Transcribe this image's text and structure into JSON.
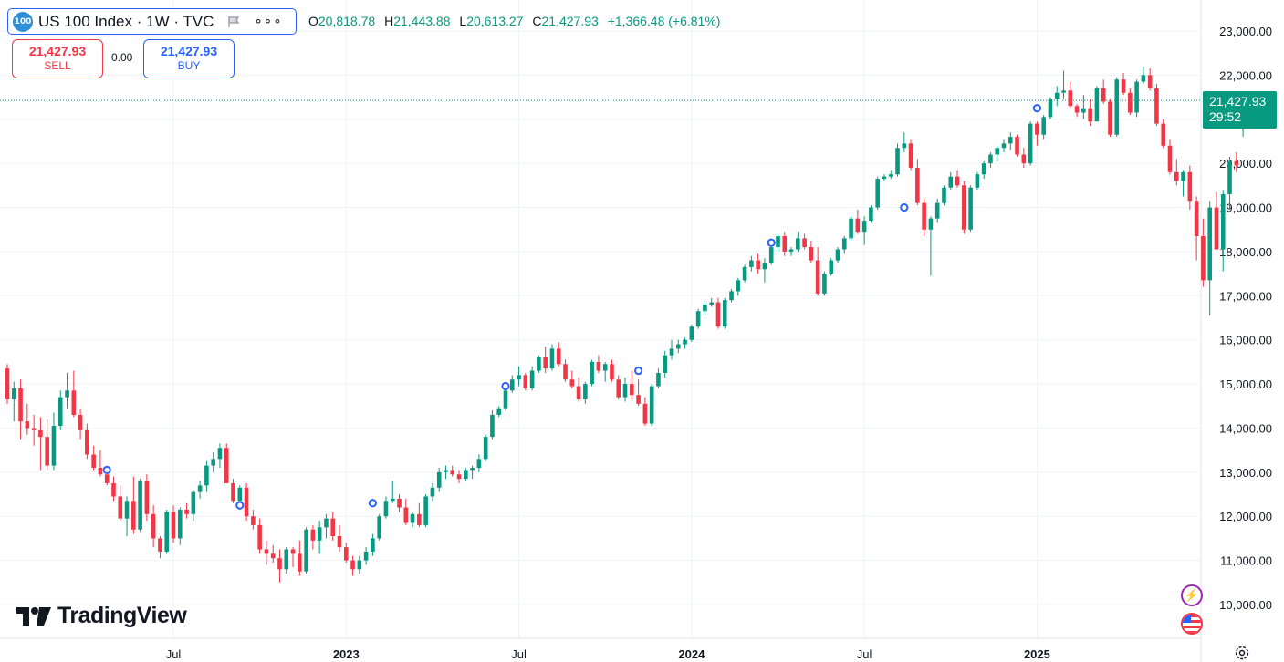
{
  "symbol": {
    "logo_text": "100",
    "title": "US 100 Index · 1W · TVC"
  },
  "ohlc": {
    "o_label": "O",
    "o_value": "20,818.78",
    "h_label": "H",
    "h_value": "21,443.88",
    "l_label": "L",
    "l_value": "20,613.27",
    "c_label": "C",
    "c_value": "21,427.93",
    "change": "+1,366.48 (+6.81%)"
  },
  "trade": {
    "sell_price": "21,427.93",
    "sell_label": "SELL",
    "spread": "0.00",
    "buy_price": "21,427.93",
    "buy_label": "BUY"
  },
  "last_price": {
    "value": "21,427.93",
    "countdown": "29:52"
  },
  "brand": {
    "name": "TradingView"
  },
  "colors": {
    "up": "#089981",
    "down": "#f23645",
    "accent": "#2962ff",
    "grid": "#f0f3fa"
  },
  "icons": [
    "flag-icon",
    "more-icon",
    "bolt-icon",
    "us-flag-icon",
    "gear-icon"
  ],
  "chart_data": {
    "type": "candlestick",
    "title": "US 100 Index · 1W · TVC",
    "timeframe": "1W",
    "ylim": [
      9500,
      23500
    ],
    "y_ticks": [
      10000,
      11000,
      12000,
      13000,
      14000,
      15000,
      16000,
      17000,
      18000,
      19000,
      20000,
      21000,
      22000,
      23000
    ],
    "y_tick_labels": [
      "10,000.00",
      "11,000.00",
      "12,000.00",
      "13,000.00",
      "14,000.00",
      "15,000.00",
      "16,000.00",
      "17,000.00",
      "18,000.00",
      "19,000.00",
      "20,000.00",
      "21,000.00",
      "22,000.00",
      "23,000.00"
    ],
    "x_ticks": [
      {
        "label": "Jul",
        "week": 25
      },
      {
        "label": "2023",
        "week": 51
      },
      {
        "label": "Jul",
        "week": 77
      },
      {
        "label": "2024",
        "week": 103
      },
      {
        "label": "Jul",
        "week": 129
      },
      {
        "label": "2025",
        "week": 155
      }
    ],
    "x_range": [
      -0.5,
      175
    ],
    "last_price_line": 21427.93,
    "event_markers": [
      {
        "week": 15,
        "price": 13050
      },
      {
        "week": 35,
        "price": 12250
      },
      {
        "week": 55,
        "price": 12300
      },
      {
        "week": 75,
        "price": 14950
      },
      {
        "week": 95,
        "price": 15300
      },
      {
        "week": 115,
        "price": 18200
      },
      {
        "week": 135,
        "price": 19000
      },
      {
        "week": 155,
        "price": 21250
      }
    ],
    "candles": [
      [
        15350,
        15450,
        14550,
        14650
      ],
      [
        14650,
        15050,
        14150,
        14900
      ],
      [
        14900,
        15100,
        13750,
        14150
      ],
      [
        14150,
        14550,
        13850,
        14000
      ],
      [
        14000,
        14300,
        13600,
        13950
      ],
      [
        13950,
        14250,
        13050,
        13800
      ],
      [
        13800,
        14200,
        13050,
        13150
      ],
      [
        13150,
        14350,
        13050,
        14050
      ],
      [
        14050,
        14850,
        13950,
        14700
      ],
      [
        14700,
        15250,
        14450,
        14850
      ],
      [
        14850,
        15300,
        14250,
        14300
      ],
      [
        14300,
        14450,
        13750,
        13950
      ],
      [
        13950,
        14100,
        13300,
        13400
      ],
      [
        13400,
        13600,
        13050,
        13100
      ],
      [
        13100,
        13500,
        12900,
        12950
      ],
      [
        12950,
        13150,
        12700,
        12750
      ],
      [
        12750,
        12900,
        12350,
        12450
      ],
      [
        12450,
        12700,
        11900,
        11950
      ],
      [
        11950,
        12450,
        11550,
        12350
      ],
      [
        12350,
        12900,
        11600,
        11700
      ],
      [
        11700,
        12850,
        11650,
        12800
      ],
      [
        12800,
        12950,
        11900,
        12050
      ],
      [
        12050,
        12250,
        11300,
        11500
      ],
      [
        11500,
        11550,
        11050,
        11200
      ],
      [
        11200,
        12150,
        11150,
        12100
      ],
      [
        12100,
        12250,
        11400,
        11500
      ],
      [
        11500,
        12200,
        11350,
        12150
      ],
      [
        12150,
        12300,
        11950,
        12050
      ],
      [
        12050,
        12600,
        11900,
        12550
      ],
      [
        12550,
        12800,
        12400,
        12700
      ],
      [
        12700,
        13250,
        12550,
        13150
      ],
      [
        13150,
        13450,
        13000,
        13300
      ],
      [
        13300,
        13650,
        13100,
        13550
      ],
      [
        13550,
        13650,
        12750,
        12750
      ],
      [
        12750,
        12850,
        12300,
        12350
      ],
      [
        12350,
        12700,
        12150,
        12650
      ],
      [
        12650,
        12750,
        11900,
        12000
      ],
      [
        12000,
        12150,
        11700,
        11800
      ],
      [
        11800,
        11950,
        11150,
        11250
      ],
      [
        11250,
        11450,
        10900,
        11150
      ],
      [
        11150,
        11350,
        10950,
        11050
      ],
      [
        11050,
        11250,
        10500,
        10800
      ],
      [
        10800,
        11300,
        10700,
        11250
      ],
      [
        11250,
        11300,
        10850,
        11150
      ],
      [
        11150,
        11450,
        10650,
        10750
      ],
      [
        10750,
        11750,
        10700,
        11700
      ],
      [
        11700,
        11800,
        11250,
        11450
      ],
      [
        11450,
        11900,
        11150,
        11750
      ],
      [
        11750,
        12050,
        11500,
        11950
      ],
      [
        11950,
        12100,
        11450,
        11550
      ],
      [
        11550,
        11800,
        11200,
        11300
      ],
      [
        11300,
        11400,
        10950,
        11000
      ],
      [
        11000,
        11100,
        10650,
        10800
      ],
      [
        10800,
        11100,
        10700,
        11000
      ],
      [
        11000,
        11300,
        10900,
        11200
      ],
      [
        11200,
        11600,
        11100,
        11500
      ],
      [
        11500,
        12050,
        11450,
        12000
      ],
      [
        12000,
        12450,
        11950,
        12350
      ],
      [
        12350,
        12800,
        12300,
        12400
      ],
      [
        12400,
        12500,
        12100,
        12200
      ],
      [
        12200,
        12400,
        11800,
        11850
      ],
      [
        11850,
        12100,
        11750,
        12050
      ],
      [
        12050,
        12300,
        11750,
        11800
      ],
      [
        11800,
        12500,
        11750,
        12450
      ],
      [
        12450,
        12750,
        12350,
        12650
      ],
      [
        12650,
        13100,
        12550,
        13000
      ],
      [
        13000,
        13150,
        12850,
        13050
      ],
      [
        13050,
        13150,
        12900,
        12950
      ],
      [
        12950,
        13050,
        12750,
        12850
      ],
      [
        12850,
        13100,
        12800,
        13050
      ],
      [
        13050,
        13150,
        12850,
        13100
      ],
      [
        13100,
        13400,
        13000,
        13300
      ],
      [
        13300,
        13850,
        13250,
        13800
      ],
      [
        13800,
        14400,
        13750,
        14300
      ],
      [
        14300,
        14500,
        14250,
        14450
      ],
      [
        14450,
        14950,
        14400,
        14850
      ],
      [
        14850,
        15200,
        14800,
        15100
      ],
      [
        15100,
        15400,
        14950,
        15200
      ],
      [
        15200,
        15250,
        14850,
        14900
      ],
      [
        14900,
        15400,
        14850,
        15300
      ],
      [
        15300,
        15650,
        15250,
        15600
      ],
      [
        15600,
        15850,
        15250,
        15350
      ],
      [
        15350,
        15900,
        15300,
        15800
      ],
      [
        15800,
        15950,
        15400,
        15450
      ],
      [
        15450,
        15550,
        15050,
        15100
      ],
      [
        15100,
        15300,
        14900,
        14950
      ],
      [
        14950,
        15150,
        14600,
        14650
      ],
      [
        14650,
        15050,
        14550,
        15000
      ],
      [
        15000,
        15550,
        14950,
        15500
      ],
      [
        15500,
        15650,
        15250,
        15300
      ],
      [
        15300,
        15500,
        15050,
        15450
      ],
      [
        15450,
        15550,
        15050,
        15100
      ],
      [
        15100,
        15200,
        14650,
        14700
      ],
      [
        14700,
        15150,
        14600,
        15000
      ],
      [
        15000,
        15300,
        14650,
        14750
      ],
      [
        14750,
        15100,
        14500,
        14550
      ],
      [
        14550,
        14700,
        14050,
        14100
      ],
      [
        14100,
        15000,
        14050,
        14950
      ],
      [
        14950,
        15350,
        14900,
        15250
      ],
      [
        15250,
        15750,
        15150,
        15650
      ],
      [
        15650,
        16000,
        15550,
        15800
      ],
      [
        15800,
        16000,
        15700,
        15900
      ],
      [
        15900,
        16050,
        15800,
        16000
      ],
      [
        16000,
        16350,
        15950,
        16300
      ],
      [
        16300,
        16700,
        16250,
        16650
      ],
      [
        16650,
        16850,
        16550,
        16800
      ],
      [
        16800,
        16950,
        16750,
        16850
      ],
      [
        16850,
        16950,
        16250,
        16300
      ],
      [
        16300,
        16950,
        16250,
        16900
      ],
      [
        16900,
        17150,
        16850,
        17100
      ],
      [
        17100,
        17400,
        17000,
        17350
      ],
      [
        17350,
        17700,
        17300,
        17650
      ],
      [
        17650,
        17900,
        17550,
        17800
      ],
      [
        17800,
        17950,
        17500,
        17600
      ],
      [
        17600,
        17850,
        17300,
        17750
      ],
      [
        17750,
        18150,
        17700,
        18100
      ],
      [
        18100,
        18400,
        18000,
        18350
      ],
      [
        18350,
        18450,
        17900,
        18000
      ],
      [
        18000,
        18100,
        17900,
        18050
      ],
      [
        18050,
        18450,
        18000,
        18300
      ],
      [
        18300,
        18400,
        18050,
        18100
      ],
      [
        18100,
        18250,
        17750,
        17800
      ],
      [
        17800,
        18100,
        17000,
        17050
      ],
      [
        17050,
        17550,
        17000,
        17500
      ],
      [
        17500,
        17850,
        17450,
        17800
      ],
      [
        17800,
        18100,
        17750,
        18050
      ],
      [
        18050,
        18350,
        17950,
        18300
      ],
      [
        18300,
        18800,
        18250,
        18750
      ],
      [
        18750,
        18950,
        18400,
        18450
      ],
      [
        18450,
        18800,
        18150,
        18700
      ],
      [
        18700,
        19050,
        18650,
        19000
      ],
      [
        19000,
        19700,
        18950,
        19650
      ],
      [
        19650,
        19750,
        19600,
        19700
      ],
      [
        19700,
        19850,
        19650,
        19750
      ],
      [
        19750,
        20450,
        19700,
        20350
      ],
      [
        20350,
        20700,
        20250,
        20450
      ],
      [
        20450,
        20550,
        19850,
        19900
      ],
      [
        19900,
        20100,
        19050,
        19100
      ],
      [
        19100,
        19200,
        18350,
        18500
      ],
      [
        18500,
        18800,
        17450,
        18750
      ],
      [
        18750,
        19200,
        18650,
        19100
      ],
      [
        19100,
        19500,
        19050,
        19450
      ],
      [
        19450,
        19800,
        19400,
        19700
      ],
      [
        19700,
        19850,
        19450,
        19500
      ],
      [
        19500,
        19600,
        18400,
        18500
      ],
      [
        18500,
        19500,
        18450,
        19450
      ],
      [
        19450,
        19800,
        19400,
        19750
      ],
      [
        19750,
        20050,
        19650,
        20000
      ],
      [
        20000,
        20250,
        19900,
        20200
      ],
      [
        20200,
        20400,
        20050,
        20350
      ],
      [
        20350,
        20550,
        20250,
        20450
      ],
      [
        20450,
        20700,
        20300,
        20600
      ],
      [
        20600,
        20650,
        20150,
        20200
      ],
      [
        20200,
        20350,
        19900,
        20000
      ],
      [
        20000,
        20950,
        19950,
        20900
      ],
      [
        20900,
        20950,
        20400,
        20650
      ],
      [
        20650,
        21100,
        20550,
        21050
      ],
      [
        21050,
        21500,
        21000,
        21450
      ],
      [
        21450,
        21750,
        21300,
        21600
      ],
      [
        21600,
        22100,
        21450,
        21650
      ],
      [
        21650,
        21850,
        21250,
        21300
      ],
      [
        21300,
        21350,
        21050,
        21150
      ],
      [
        21150,
        21550,
        21000,
        21250
      ],
      [
        21250,
        21450,
        20850,
        20950
      ],
      [
        20950,
        21750,
        20950,
        21700
      ],
      [
        21700,
        21900,
        21350,
        21400
      ],
      [
        21400,
        21450,
        20600,
        20650
      ],
      [
        20650,
        21950,
        20600,
        21900
      ],
      [
        21900,
        22050,
        21550,
        21600
      ],
      [
        21600,
        21700,
        21100,
        21150
      ],
      [
        21150,
        21900,
        21050,
        21850
      ],
      [
        21850,
        22200,
        21800,
        22000
      ],
      [
        22000,
        22150,
        21650,
        21700
      ],
      [
        21700,
        21800,
        20850,
        20900
      ],
      [
        20900,
        21000,
        20350,
        20400
      ],
      [
        20400,
        20550,
        19750,
        19800
      ],
      [
        19800,
        20100,
        19500,
        19600
      ],
      [
        19600,
        19850,
        19250,
        19800
      ],
      [
        19800,
        19950,
        18950,
        19150
      ],
      [
        19150,
        19250,
        17800,
        18350
      ],
      [
        18350,
        18750,
        17200,
        17350
      ],
      [
        17350,
        19150,
        16550,
        19000
      ],
      [
        19000,
        19350,
        18050,
        18050
      ],
      [
        18050,
        19400,
        17550,
        19300
      ],
      [
        19300,
        20150,
        18950,
        20050
      ],
      [
        20050,
        20250,
        19800,
        19950
      ],
      [
        20800,
        21450,
        20600,
        21430
      ]
    ]
  }
}
